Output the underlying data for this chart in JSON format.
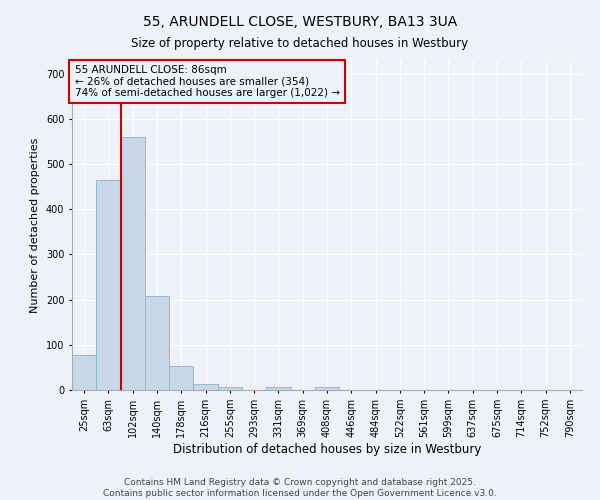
{
  "title": "55, ARUNDELL CLOSE, WESTBURY, BA13 3UA",
  "subtitle": "Size of property relative to detached houses in Westbury",
  "xlabel": "Distribution of detached houses by size in Westbury",
  "ylabel": "Number of detached properties",
  "footer_line1": "Contains HM Land Registry data © Crown copyright and database right 2025.",
  "footer_line2": "Contains public sector information licensed under the Open Government Licence v3.0.",
  "annotation_line1": "55 ARUNDELL CLOSE: 86sqm",
  "annotation_line2": "← 26% of detached houses are smaller (354)",
  "annotation_line3": "74% of semi-detached houses are larger (1,022) →",
  "bar_color": "#c8d8e8",
  "bar_edge_color": "#90b8d0",
  "vline_color": "#cc0000",
  "vline_x_index": 1.5,
  "background_color": "#eef2f8",
  "grid_color": "#ffffff",
  "categories": [
    "25sqm",
    "63sqm",
    "102sqm",
    "140sqm",
    "178sqm",
    "216sqm",
    "255sqm",
    "293sqm",
    "331sqm",
    "369sqm",
    "408sqm",
    "446sqm",
    "484sqm",
    "522sqm",
    "561sqm",
    "599sqm",
    "637sqm",
    "675sqm",
    "714sqm",
    "752sqm",
    "790sqm"
  ],
  "values": [
    78,
    465,
    560,
    208,
    52,
    14,
    7,
    0,
    7,
    0,
    7,
    0,
    0,
    0,
    0,
    0,
    0,
    0,
    0,
    0,
    0
  ],
  "ylim": [
    0,
    730
  ],
  "yticks": [
    0,
    100,
    200,
    300,
    400,
    500,
    600,
    700
  ],
  "figsize": [
    6.0,
    5.0
  ],
  "dpi": 100,
  "title_fontsize": 10,
  "subtitle_fontsize": 8.5,
  "ylabel_fontsize": 8,
  "xlabel_fontsize": 8.5,
  "tick_fontsize": 7,
  "annotation_fontsize": 7.5,
  "footer_fontsize": 6.5
}
